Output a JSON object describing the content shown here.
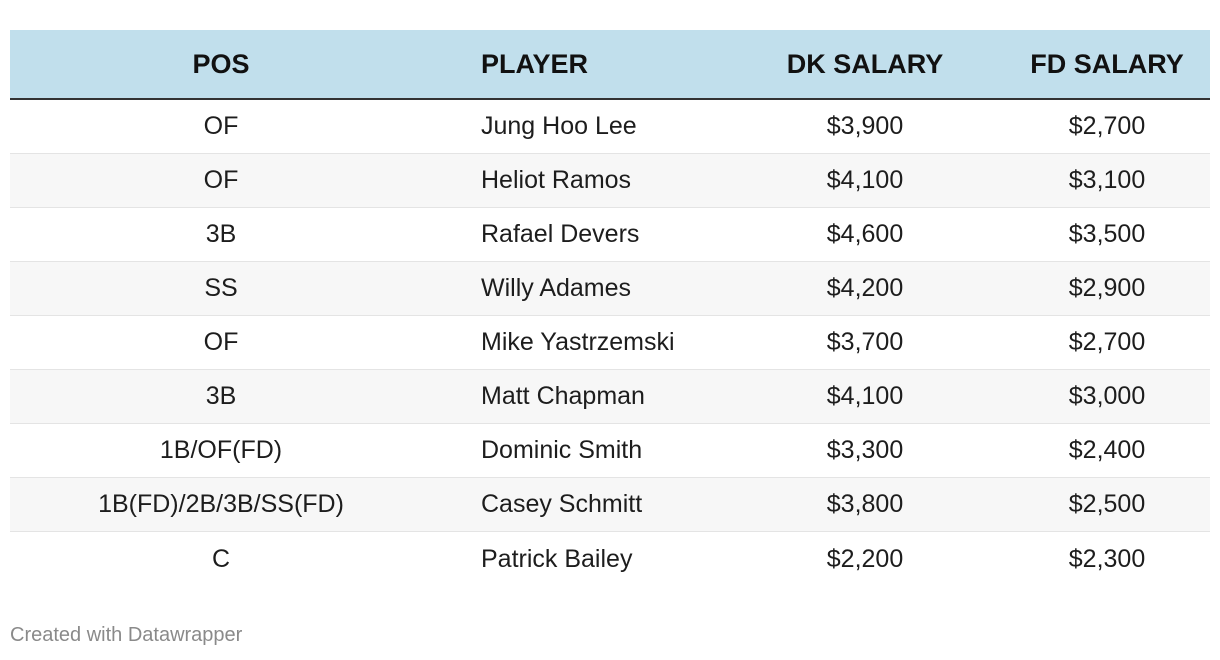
{
  "table": {
    "headers": [
      "POS",
      "PLAYER",
      "DK SALARY",
      "FD SALARY"
    ],
    "header_bg": "#c1dfec",
    "rows": [
      [
        "OF",
        "Jung Hoo Lee",
        "$3,900",
        "$2,700"
      ],
      [
        "OF",
        "Heliot Ramos",
        "$4,100",
        "$3,100"
      ],
      [
        "3B",
        "Rafael Devers",
        "$4,600",
        "$3,500"
      ],
      [
        "SS",
        "Willy Adames",
        "$4,200",
        "$2,900"
      ],
      [
        "OF",
        "Mike Yastrzemski",
        "$3,700",
        "$2,700"
      ],
      [
        "3B",
        "Matt Chapman",
        "$4,100",
        "$3,000"
      ],
      [
        "1B/OF(FD)",
        "Dominic Smith",
        "$3,300",
        "$2,400"
      ],
      [
        "1B(FD)/2B/3B/SS(FD)",
        "Casey Schmitt",
        "$3,800",
        "$2,500"
      ],
      [
        "C",
        "Patrick Bailey",
        "$2,200",
        "$2,300"
      ]
    ]
  },
  "footer": {
    "credit": "Created with Datawrapper"
  }
}
